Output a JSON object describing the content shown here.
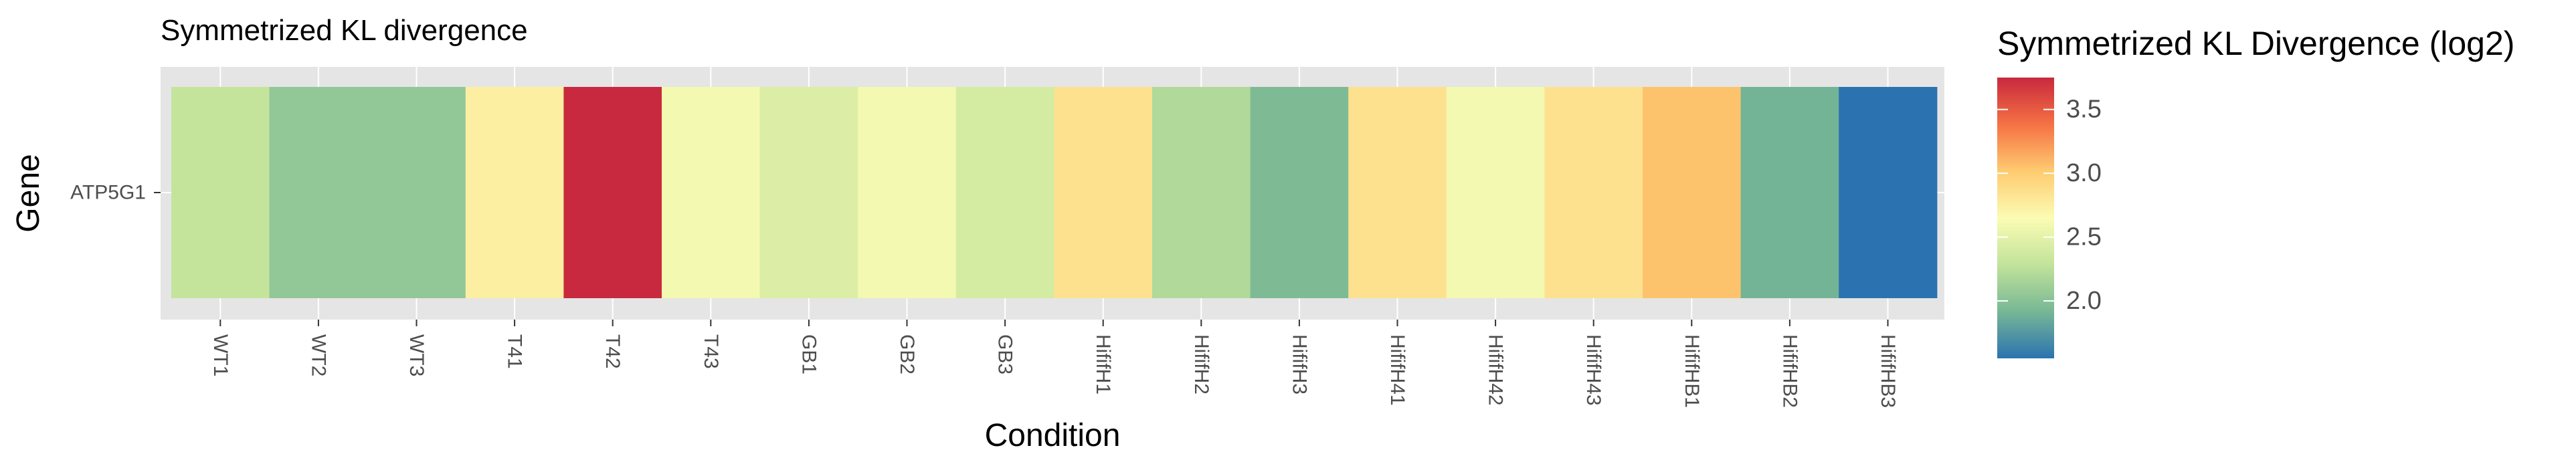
{
  "chart_data": {
    "type": "heatmap",
    "title": "Symmetrized KL divergence",
    "xlabel": "Condition",
    "ylabel": "Gene",
    "rows": [
      "ATP5G1"
    ],
    "categories": [
      "WT1",
      "WT2",
      "WT3",
      "T41",
      "T42",
      "T43",
      "GB1",
      "GB2",
      "GB3",
      "HififH1",
      "HififH2",
      "HififH3",
      "HififH41",
      "HififH42",
      "HififH43",
      "HififHB1",
      "HififHB2",
      "HififHB3"
    ],
    "values": [
      2.3,
      2.05,
      2.05,
      2.75,
      3.75,
      2.6,
      2.45,
      2.6,
      2.4,
      2.85,
      2.2,
      1.95,
      2.85,
      2.6,
      2.85,
      3.05,
      1.9,
      1.55
    ],
    "legend": {
      "title": "Symmetrized KL Divergence (log2)",
      "ticks": [
        "3.5",
        "3.0",
        "2.5",
        "2.0"
      ],
      "tick_values": [
        3.5,
        3.0,
        2.5,
        2.0
      ],
      "range": [
        1.55,
        3.75
      ],
      "colors": [
        "#2b73b0",
        "#77b795",
        "#c2e39a",
        "#fbfcb4",
        "#fecb70",
        "#f57144",
        "#c8293e"
      ],
      "placement": "right"
    },
    "panel_background": "#e5e5e5",
    "grid": true
  }
}
